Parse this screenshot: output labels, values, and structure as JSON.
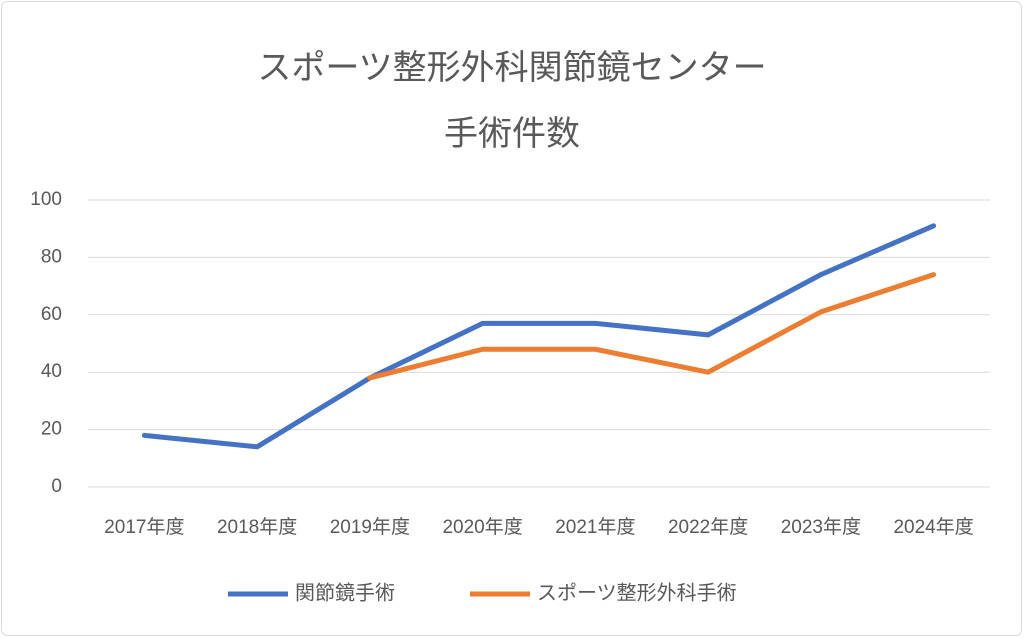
{
  "chart_data": {
    "type": "line",
    "title": [
      "スポーツ整形外科関節鏡センター",
      "手術件数"
    ],
    "categories": [
      "2017年度",
      "2018年度",
      "2019年度",
      "2020年度",
      "2021年度",
      "2022年度",
      "2023年度",
      "2024年度"
    ],
    "series": [
      {
        "name": "関節鏡手術",
        "color": "#4472c4",
        "values": [
          18,
          14,
          38,
          57,
          57,
          53,
          74,
          91
        ]
      },
      {
        "name": "スポーツ整形外科手術",
        "color": "#ed7d31",
        "values": [
          null,
          null,
          38,
          48,
          48,
          40,
          61,
          74
        ]
      }
    ],
    "ylim": [
      0,
      100
    ],
    "yticks": [
      0,
      20,
      40,
      60,
      80,
      100
    ],
    "grid": true,
    "legend": "bottom"
  }
}
